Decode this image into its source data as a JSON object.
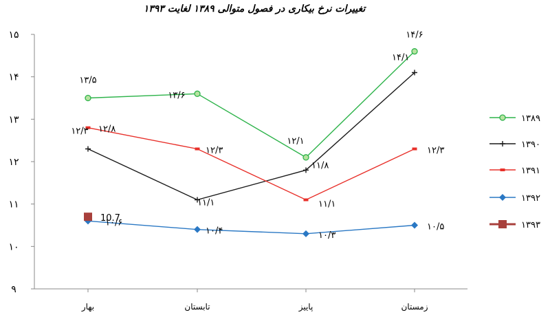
{
  "chart_data": {
    "type": "line",
    "title": "تغییرات نرخ بیکاری در فصول متوالی ۱۳۸۹ لغایت ۱۳۹۳",
    "xlabel": "",
    "ylabel": "",
    "categories": [
      "بهار",
      "تابستان",
      "پاییز",
      "زمستان"
    ],
    "ylim": [
      9,
      15
    ],
    "yticks": [
      9,
      10,
      11,
      12,
      13,
      14,
      15
    ],
    "ytick_labels": [
      "۹",
      "۱۰",
      "۱۱",
      "۱۲",
      "۱۳",
      "۱۴",
      "۱۵"
    ],
    "grid": false,
    "legend_position": "right",
    "series": [
      {
        "name": "۱۳۸۹",
        "color": "#2db34a",
        "marker": "circle",
        "values": [
          13.5,
          13.6,
          12.1,
          14.6
        ],
        "labels": [
          "۱۳/۵",
          "۱۳/۶",
          "۱۲/۱",
          "۱۴/۶"
        ]
      },
      {
        "name": "۱۳۹۰",
        "color": "#1a1a1a",
        "marker": "plus",
        "values": [
          12.3,
          11.1,
          11.8,
          14.1
        ],
        "labels": [
          "۱۲/۳",
          "۱۱/۱",
          "۱۱/۸",
          "۱۴/۱"
        ]
      },
      {
        "name": "۱۳۹۱",
        "color": "#e8302a",
        "marker": "dash",
        "values": [
          12.8,
          12.3,
          11.1,
          12.3
        ],
        "labels": [
          "۱۲/۸",
          "۱۲/۳",
          "۱۱/۱",
          "۱۲/۳"
        ]
      },
      {
        "name": "۱۳۹۲",
        "color": "#2a78c4",
        "marker": "diamond",
        "values": [
          10.6,
          10.4,
          10.3,
          10.5
        ],
        "labels": [
          "۱۰/۶",
          "۱۰/۴",
          "۱۰/۳",
          "۱۰/۵"
        ]
      },
      {
        "name": "۱۳۹۳",
        "color": "#a8403c",
        "marker": "square",
        "values": [
          10.7,
          null,
          null,
          null
        ],
        "labels": [
          "10.7",
          "",
          "",
          ""
        ]
      }
    ]
  }
}
